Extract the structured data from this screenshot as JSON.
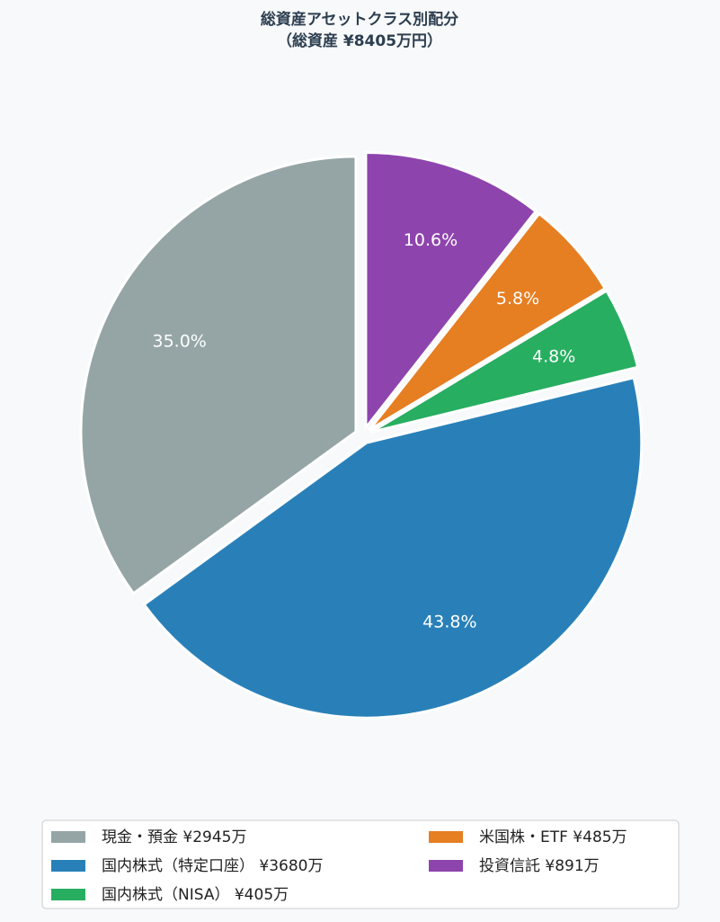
{
  "chart_data": {
    "type": "pie",
    "title": "総資産アセットクラス別配分",
    "subtitle": "（総資産 ¥8405万円）",
    "categories": [
      "現金・預金 ¥2945万",
      "国内株式（特定口座） ¥3680万",
      "国内株式（NISA） ¥405万",
      "米国株・ETF ¥485万",
      "投資信託 ¥891万"
    ],
    "values": [
      35.0,
      43.8,
      4.8,
      5.8,
      10.6
    ],
    "value_labels": [
      "35.0%",
      "43.8%",
      "4.8%",
      "5.8%",
      "10.6%"
    ],
    "colors": [
      "#95a5a6",
      "#2980b9",
      "#27ae60",
      "#e67e22",
      "#8e44ad"
    ],
    "legend": "bottom"
  }
}
